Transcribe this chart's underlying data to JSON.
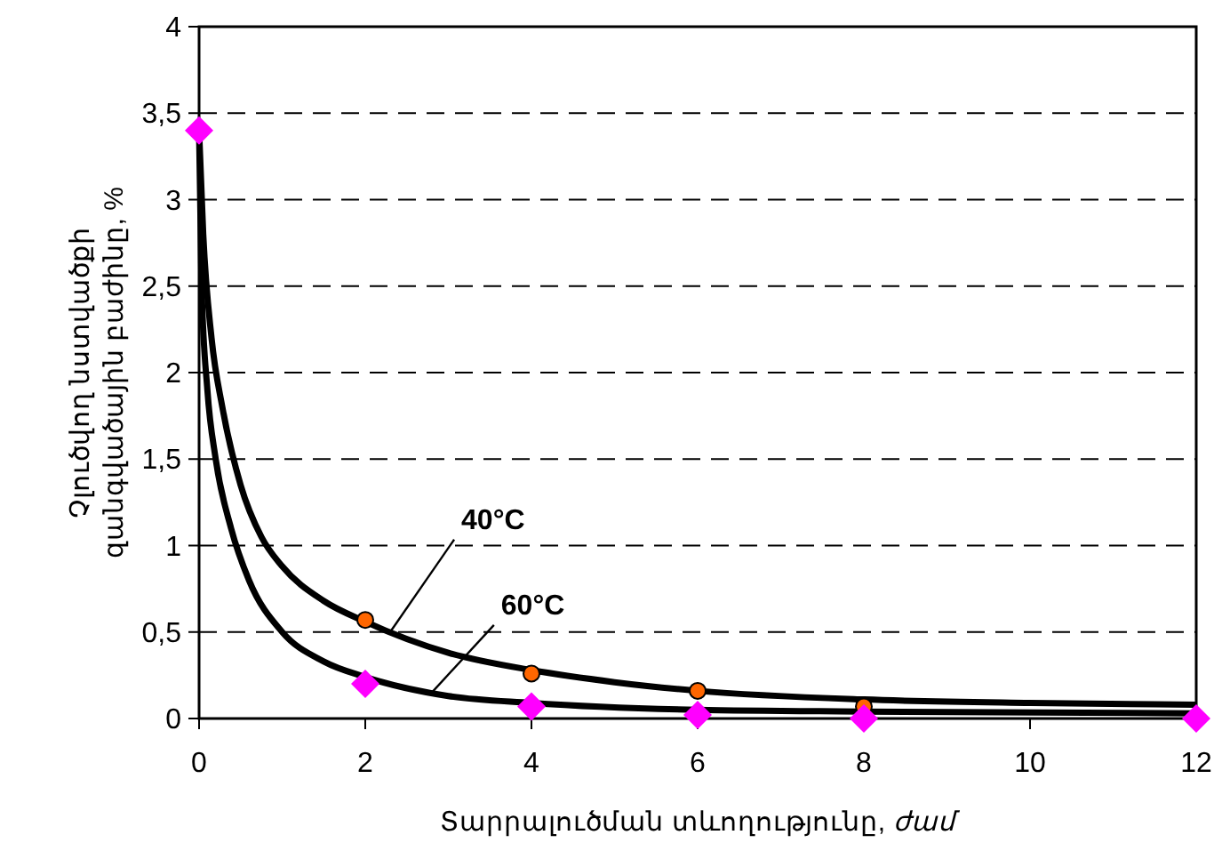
{
  "chart_data": {
    "type": "line",
    "xlabel": "Տարրալուծման տևողությունը, ժամ",
    "ylabel": "Չլուծվող նստվածքի\nզանգվածային բաժինը, %",
    "xlim": [
      0,
      12
    ],
    "xticks": [
      0,
      2,
      4,
      6,
      8,
      10,
      12
    ],
    "ylim": [
      0,
      4
    ],
    "yticks": [
      0,
      {
        "value": 0.5,
        "label": "0,5"
      },
      1,
      {
        "value": 1.5,
        "label": "1,5"
      },
      2,
      {
        "value": 2.5,
        "label": "2,5"
      },
      3,
      {
        "value": 3.5,
        "label": "3,5"
      },
      4
    ],
    "grid": "y",
    "series": [
      {
        "type": "line",
        "color": "#000000",
        "marker": "none",
        "x": [
          0,
          0.05,
          0.15,
          0.28,
          0.5,
          0.75,
          1,
          1.5,
          2,
          3,
          4,
          5,
          6,
          8,
          10,
          12
        ],
        "values": [
          3.4,
          2.8,
          2.2,
          1.8,
          1.35,
          1.05,
          0.88,
          0.68,
          0.56,
          0.38,
          0.28,
          0.21,
          0.16,
          0.11,
          0.09,
          0.08
        ]
      },
      {
        "color": "#000000",
        "marker": "none",
        "x": [
          0,
          0.03,
          0.1,
          0.2,
          0.385,
          0.6,
          1,
          1.5,
          2,
          3,
          4,
          6,
          8,
          12
        ],
        "values": [
          3.4,
          2.5,
          1.9,
          1.5,
          1.1,
          0.8,
          0.5,
          0.33,
          0.24,
          0.13,
          0.09,
          0.05,
          0.04,
          0.03
        ]
      },
      {
        "type": "scatter",
        "color": "#ff6600",
        "marker": "circle",
        "x": [
          2,
          4,
          6,
          8
        ],
        "values": [
          0.57,
          0.26,
          0.16,
          0.07
        ]
      },
      {
        "type": "scatter",
        "color": "#ff00ff",
        "marker": "diamond",
        "x": [
          0,
          2,
          4,
          6,
          8,
          12
        ],
        "values": [
          3.4,
          0.2,
          0.07,
          0.02,
          0,
          0
        ]
      }
    ],
    "annotations": [
      {
        "text": "40°C",
        "x": 2.3,
        "y": 0.5
      },
      {
        "text": "60°C",
        "x": 2.8,
        "y": 0.15
      }
    ]
  }
}
